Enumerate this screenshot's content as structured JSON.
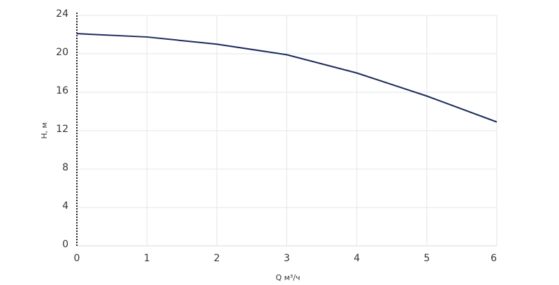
{
  "chart_data": {
    "type": "line",
    "x_label": "Q м³/ч",
    "y_label": "H, м",
    "x": [
      0,
      1,
      2,
      3,
      4,
      5,
      6
    ],
    "series": [
      {
        "color": "#1b2a5c",
        "values": [
          22.1,
          21.75,
          21.0,
          19.9,
          18.0,
          15.6,
          12.9
        ]
      }
    ],
    "xlim": [
      0,
      6
    ],
    "xticks": [
      0,
      1,
      2,
      3,
      4,
      5,
      6
    ],
    "ylim": [
      0,
      24
    ],
    "yticks": [
      0,
      4,
      8,
      12,
      16,
      20,
      24
    ],
    "grid": true
  }
}
